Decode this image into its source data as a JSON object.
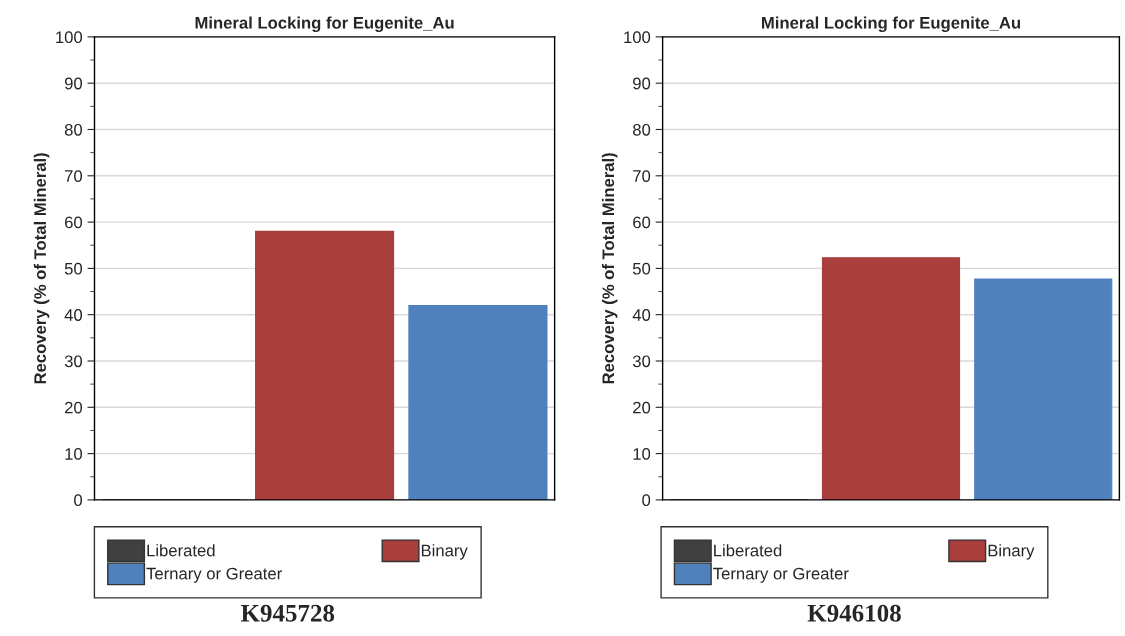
{
  "chart_data": [
    {
      "type": "bar",
      "title": "Mineral Locking for Eugenite_Au",
      "ylabel": "Recovery (% of Total Mineral)",
      "categories": [
        null,
        null,
        null
      ],
      "series": [
        {
          "name": "Liberated",
          "color": "#404040",
          "values": [
            0,
            null,
            null
          ]
        },
        {
          "name": "Binary",
          "color": "#a93f3c",
          "values": [
            null,
            58,
            null
          ]
        },
        {
          "name": "Ternary or Greater",
          "color": "#4f81bd",
          "values": [
            null,
            null,
            42
          ]
        }
      ],
      "ylim": [
        0,
        100
      ],
      "yticks": [
        0,
        10,
        20,
        30,
        40,
        50,
        60,
        70,
        80,
        90,
        100
      ],
      "grid": "y",
      "legend": "bottom",
      "annotations": [
        "K945728"
      ]
    },
    {
      "type": "bar",
      "title": "Mineral Locking for Eugenite_Au",
      "ylabel": "Recovery (% of Total Mineral)",
      "categories": [
        null,
        null,
        null
      ],
      "series": [
        {
          "name": "Liberated",
          "color": "#404040",
          "values": [
            0,
            null,
            null
          ]
        },
        {
          "name": "Binary",
          "color": "#a93f3c",
          "values": [
            null,
            52.3,
            null
          ]
        },
        {
          "name": "Ternary or Greater",
          "color": "#4f81bd",
          "values": [
            null,
            null,
            47.7
          ]
        }
      ],
      "ylim": [
        0,
        100
      ],
      "yticks": [
        0,
        10,
        20,
        30,
        40,
        50,
        60,
        70,
        80,
        90,
        100
      ],
      "grid": "y",
      "legend": "bottom",
      "annotations": [
        "K946108"
      ]
    }
  ]
}
